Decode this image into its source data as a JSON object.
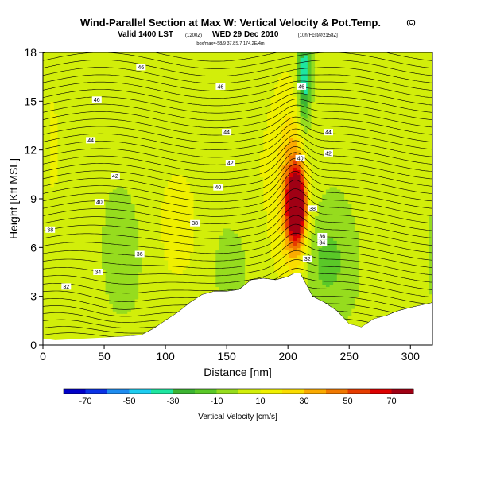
{
  "header": {
    "title": "Wind-Parallel Section at Max W: Vertical Velocity & Pot.Temp.",
    "copyright_mark": "(C)",
    "valid_main": "Valid 1400 LST",
    "valid_utc": "(1200Z)",
    "valid_date": "WED 29 Dec 2010",
    "valid_run": "[10hrFcst@2158Z]",
    "subline": "box/max=-58/9 37.8S,7 174.2E/4m"
  },
  "chart_data": {
    "type": "contour",
    "xlabel": "Distance [nm]",
    "ylabel": "Height [Kft MSL]",
    "xlim": [
      0,
      318
    ],
    "ylim": [
      0,
      18
    ],
    "x_ticks": [
      "0",
      "50",
      "100",
      "150",
      "200",
      "250",
      "300"
    ],
    "y_ticks": [
      "0",
      "3",
      "6",
      "9",
      "12",
      "15",
      "18"
    ],
    "x_tick_values": [
      0,
      50,
      100,
      150,
      200,
      250,
      300
    ],
    "y_tick_values": [
      0,
      3,
      6,
      9,
      12,
      15,
      18
    ],
    "colorbar": {
      "label": "Vertical Velocity [cm/s]",
      "tick_labels": [
        "-70",
        "-50",
        "-30",
        "-10",
        "10",
        "30",
        "50",
        "70"
      ],
      "tick_values": [
        -70,
        -50,
        -30,
        -10,
        10,
        30,
        50,
        70
      ],
      "range": [
        -80,
        80
      ],
      "colors": [
        "#0000c8",
        "#0a32e6",
        "#1e8cf0",
        "#1ecdf0",
        "#1ee6a0",
        "#3cb432",
        "#5ac828",
        "#96dc1e",
        "#d2ee0a",
        "#f0f000",
        "#fadc00",
        "#faaa00",
        "#f07800",
        "#e63c00",
        "#dc0000",
        "#a00014"
      ]
    },
    "theta_contour_labels": [
      {
        "text": "46",
        "x": 80,
        "y": 17.1
      },
      {
        "text": "46",
        "x": 145,
        "y": 15.9
      },
      {
        "text": "46",
        "x": 44,
        "y": 15.1
      },
      {
        "text": "44",
        "x": 150,
        "y": 13.1
      },
      {
        "text": "44",
        "x": 39,
        "y": 12.6
      },
      {
        "text": "44",
        "x": 233,
        "y": 13.1
      },
      {
        "text": "42",
        "x": 153,
        "y": 11.2
      },
      {
        "text": "42",
        "x": 233,
        "y": 11.8
      },
      {
        "text": "42",
        "x": 59,
        "y": 10.4
      },
      {
        "text": "40",
        "x": 210,
        "y": 11.5
      },
      {
        "text": "40",
        "x": 143,
        "y": 9.7
      },
      {
        "text": "40",
        "x": 46,
        "y": 8.8
      },
      {
        "text": "46",
        "x": 211,
        "y": 15.9
      },
      {
        "text": "38",
        "x": 124,
        "y": 7.5
      },
      {
        "text": "38",
        "x": 220,
        "y": 8.4
      },
      {
        "text": "38",
        "x": 6,
        "y": 7.1
      },
      {
        "text": "36",
        "x": 79,
        "y": 5.6
      },
      {
        "text": "36",
        "x": 228,
        "y": 6.7
      },
      {
        "text": "34",
        "x": 228,
        "y": 6.3
      },
      {
        "text": "34",
        "x": 45,
        "y": 4.5
      },
      {
        "text": "32",
        "x": 19,
        "y": 3.6
      },
      {
        "text": "32",
        "x": 216,
        "y": 5.3
      }
    ]
  }
}
